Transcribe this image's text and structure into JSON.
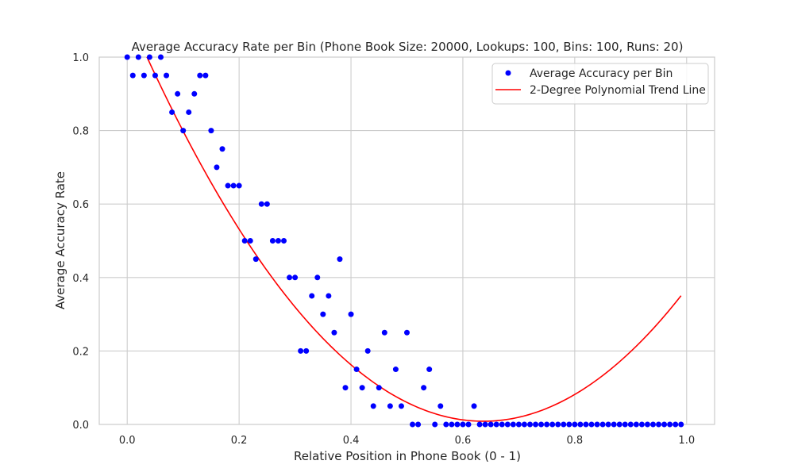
{
  "chart_data": {
    "type": "scatter",
    "title": "Average Accuracy Rate per Bin (Phone Book Size: 20000, Lookups: 100, Bins: 100, Runs: 20)",
    "xlabel": "Relative Position in Phone Book (0 - 1)",
    "ylabel": "Average Accuracy Rate",
    "xlim": [
      -0.05,
      1.05
    ],
    "ylim": [
      0,
      1
    ],
    "x_ticks": [
      0.0,
      0.2,
      0.4,
      0.6,
      0.8,
      1.0
    ],
    "x_tick_labels": [
      "0.0",
      "0.2",
      "0.4",
      "0.6",
      "0.8",
      "1.0"
    ],
    "y_ticks": [
      0.0,
      0.2,
      0.4,
      0.6,
      0.8,
      1.0
    ],
    "y_tick_labels": [
      "0.0",
      "0.2",
      "0.4",
      "0.6",
      "0.8",
      "1.0"
    ],
    "grid": true,
    "legend_position": "top-right",
    "series": [
      {
        "name": "Average Accuracy per Bin",
        "kind": "scatter",
        "color": "#0000ff",
        "x": [
          0.0,
          0.01,
          0.02,
          0.03,
          0.04,
          0.05,
          0.06,
          0.07,
          0.08,
          0.09,
          0.1,
          0.11,
          0.12,
          0.13,
          0.14,
          0.15,
          0.16,
          0.17,
          0.18,
          0.19,
          0.2,
          0.21,
          0.22,
          0.23,
          0.24,
          0.25,
          0.26,
          0.27,
          0.28,
          0.29,
          0.3,
          0.31,
          0.32,
          0.33,
          0.34,
          0.35,
          0.36,
          0.37,
          0.38,
          0.39,
          0.4,
          0.41,
          0.42,
          0.43,
          0.44,
          0.45,
          0.46,
          0.47,
          0.48,
          0.49,
          0.5,
          0.51,
          0.52,
          0.53,
          0.54,
          0.55,
          0.56,
          0.57,
          0.58,
          0.59,
          0.6,
          0.61,
          0.62,
          0.63,
          0.64,
          0.65,
          0.66,
          0.67,
          0.68,
          0.69,
          0.7,
          0.71,
          0.72,
          0.73,
          0.74,
          0.75,
          0.76,
          0.77,
          0.78,
          0.79,
          0.8,
          0.81,
          0.82,
          0.83,
          0.84,
          0.85,
          0.86,
          0.87,
          0.88,
          0.89,
          0.9,
          0.91,
          0.92,
          0.93,
          0.94,
          0.95,
          0.96,
          0.97,
          0.98,
          0.99
        ],
        "y": [
          1.0,
          0.95,
          1.0,
          0.95,
          1.0,
          0.95,
          1.0,
          0.95,
          0.85,
          0.9,
          0.8,
          0.85,
          0.9,
          0.95,
          0.95,
          0.8,
          0.7,
          0.75,
          0.65,
          0.65,
          0.65,
          0.5,
          0.5,
          0.45,
          0.6,
          0.6,
          0.5,
          0.5,
          0.5,
          0.4,
          0.4,
          0.2,
          0.2,
          0.35,
          0.4,
          0.3,
          0.35,
          0.25,
          0.45,
          0.1,
          0.3,
          0.15,
          0.1,
          0.2,
          0.05,
          0.1,
          0.25,
          0.05,
          0.15,
          0.05,
          0.25,
          0.0,
          0.0,
          0.1,
          0.15,
          0.0,
          0.05,
          0.0,
          0.0,
          0.0,
          0.0,
          0.0,
          0.05,
          0.0,
          0.0,
          0.0,
          0.0,
          0.0,
          0.0,
          0.0,
          0.0,
          0.0,
          0.0,
          0.0,
          0.0,
          0.0,
          0.0,
          0.0,
          0.0,
          0.0,
          0.0,
          0.0,
          0.0,
          0.0,
          0.0,
          0.0,
          0.0,
          0.0,
          0.0,
          0.0,
          0.0,
          0.0,
          0.0,
          0.0,
          0.0,
          0.0,
          0.0,
          0.0,
          0.0,
          0.0
        ]
      },
      {
        "name": "2-Degree Polynomial Trend Line",
        "kind": "line",
        "color": "#ff0000",
        "coefficients": [
          1.12,
          -3.49,
          2.74
        ],
        "x_range": [
          0.0,
          0.99
        ]
      }
    ]
  }
}
